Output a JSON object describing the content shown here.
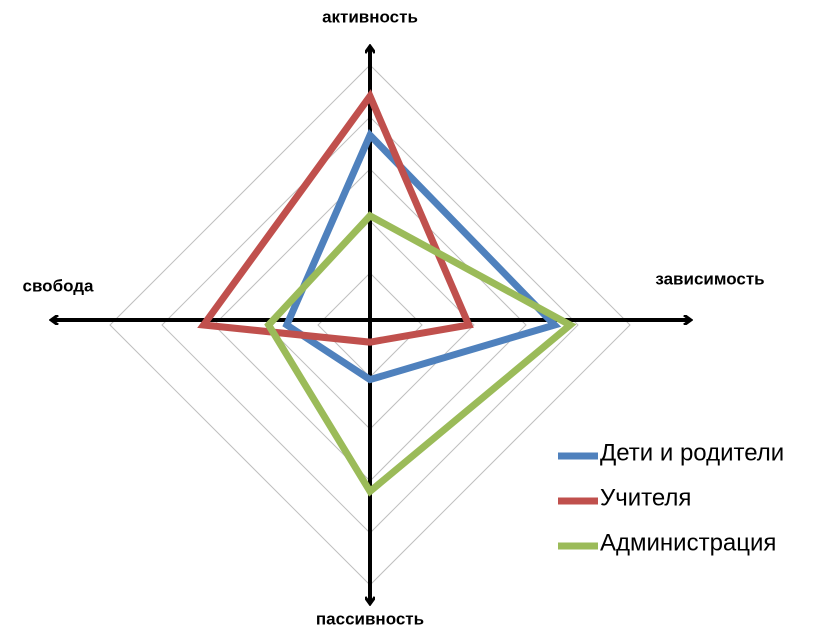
{
  "chart_data": {
    "type": "radar",
    "categories": [
      "активность",
      "зависимость",
      "пассивность",
      "свобода"
    ],
    "series": [
      {
        "name": "Дети и родители",
        "color": "#4f81bd",
        "values": [
          3.65,
          3.55,
          1.05,
          1.6
        ]
      },
      {
        "name": "Учителя",
        "color": "#c0504d",
        "values": [
          4.4,
          1.9,
          0.33,
          3.2
        ]
      },
      {
        "name": "Администрация",
        "color": "#9bbb59",
        "values": [
          2.1,
          3.85,
          3.2,
          1.95
        ]
      }
    ],
    "rlim": [
      0,
      5
    ],
    "rticks": [
      1,
      2,
      3,
      4,
      5
    ],
    "grid": true,
    "legend": "lower right"
  }
}
